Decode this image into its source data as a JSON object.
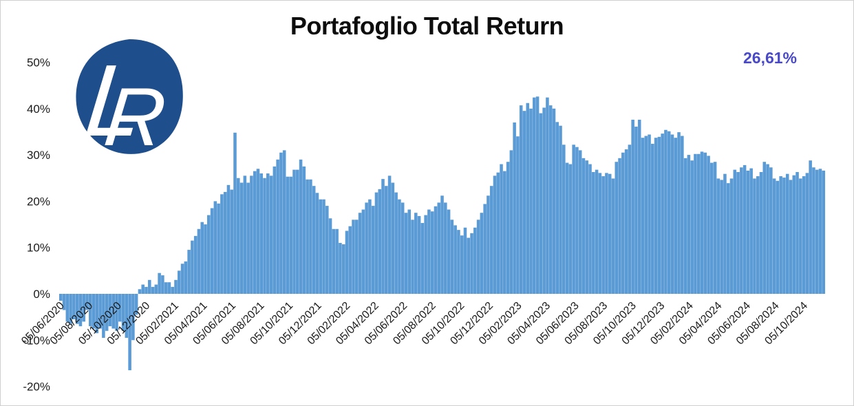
{
  "header": {
    "title": "Portafoglio Total Return",
    "current_return": "26,61%"
  },
  "logo": {
    "letter_l": "L",
    "letter_r": "R",
    "background_color": "#1F4E8C",
    "letter_color": "#FFFFFF"
  },
  "colors": {
    "bar": "#5B9BD5",
    "value_text": "#4949C8",
    "axis_text": "#1a1a1a",
    "title_text": "#0d0d0d",
    "frame_border": "#cfcfcf"
  },
  "chart_data": {
    "type": "bar",
    "title": "Portafoglio Total Return",
    "unit": "percent",
    "frequency": "weekly",
    "x_start_date": "05/06/2020",
    "final_value_label": "26,61%",
    "grid": false,
    "legend": false,
    "ylim": [
      -20,
      50
    ],
    "y_ticks": [
      50,
      40,
      30,
      20,
      10,
      0,
      -10,
      -20
    ],
    "y_tick_labels": [
      "50%",
      "40%",
      "30%",
      "20%",
      "10%",
      "0%",
      "-10%",
      "-20%"
    ],
    "x_tick_labels": [
      "05/06/2020",
      "05/08/2020",
      "05/10/2020",
      "05/12/2020",
      "05/02/2021",
      "05/04/2021",
      "05/06/2021",
      "05/08/2021",
      "05/10/2021",
      "05/12/2021",
      "05/02/2022",
      "05/04/2022",
      "05/06/2022",
      "05/08/2022",
      "05/10/2022",
      "05/12/2022",
      "05/02/2023",
      "05/04/2023",
      "05/06/2023",
      "05/08/2023",
      "05/10/2023",
      "05/12/2023",
      "05/02/2024",
      "05/04/2024",
      "05/06/2024",
      "05/08/2024",
      "05/10/2024"
    ],
    "values": [
      -1.5,
      -3.5,
      -6,
      -6.5,
      -5.5,
      -6.5,
      -7,
      -6,
      -3.5,
      -7,
      -7.5,
      -8.5,
      -7.5,
      -9.5,
      -8,
      -7,
      -7.5,
      -8,
      -6,
      -8,
      -9.5,
      -16.5,
      -10,
      -4.5,
      1,
      2,
      1.5,
      3,
      1.5,
      2,
      4.5,
      4,
      2.5,
      2.5,
      1.5,
      3,
      5,
      6.5,
      7,
      9.5,
      11.5,
      12.5,
      14,
      15.5,
      15,
      17,
      18.5,
      20,
      19.5,
      21.5,
      22,
      23.5,
      22.5,
      34.8,
      25,
      24,
      25.5,
      24,
      25.5,
      26.5,
      27,
      26,
      25,
      26,
      25.5,
      27.5,
      29,
      30.5,
      31,
      25.3,
      25.3,
      26.8,
      26.8,
      29,
      27.5,
      24.7,
      24.7,
      23.3,
      21.8,
      20.4,
      20.4,
      19,
      16.3,
      14,
      14,
      11,
      10.7,
      13.6,
      14.6,
      16,
      16,
      17.5,
      18.2,
      19.7,
      20.4,
      19,
      21.9,
      22.6,
      24.8,
      23.3,
      25.5,
      24,
      21.9,
      20.4,
      19.7,
      17.5,
      18.2,
      16,
      17.5,
      16.8,
      15.3,
      17,
      18.2,
      17.8,
      18.9,
      19.7,
      21.2,
      19.7,
      18.2,
      16,
      14.8,
      13.8,
      12.6,
      14.3,
      12.1,
      13.1,
      14.3,
      16,
      17.5,
      19.4,
      21.2,
      23.3,
      25.5,
      26.2,
      28,
      26.5,
      28.5,
      31,
      37,
      34,
      40.7,
      39.5,
      41.2,
      40,
      42.4,
      42.6,
      39,
      40.2,
      42.4,
      40.7,
      40,
      37.1,
      36.3,
      32.2,
      28.3,
      28,
      32.2,
      31.7,
      31,
      29.3,
      28.8,
      28,
      26.3,
      26.8,
      26.1,
      25.4,
      26.1,
      25.9,
      24.9,
      28.5,
      29.3,
      30.5,
      31.2,
      32.2,
      37.6,
      36.1,
      37.6,
      33.7,
      34.1,
      34.4,
      32.4,
      33.7,
      33.9,
      34.6,
      35.4,
      35.1,
      34.4,
      33.7,
      34.9,
      34.1,
      29.3,
      30,
      28.8,
      30.2,
      30.2,
      30.7,
      30.5,
      29.8,
      28.3,
      28.5,
      24.9,
      24.6,
      25.9,
      23.9,
      24.9,
      26.8,
      26.3,
      27.3,
      27.8,
      26.6,
      27.1,
      24.9,
      25.4,
      26.3,
      28.5,
      28,
      27.3,
      24.9,
      24.4,
      25.4,
      25.1,
      25.9,
      24.6,
      25.6,
      26.3,
      24.9,
      25.4,
      26.1,
      28.8,
      27.3,
      26.8,
      27,
      26.61
    ]
  }
}
